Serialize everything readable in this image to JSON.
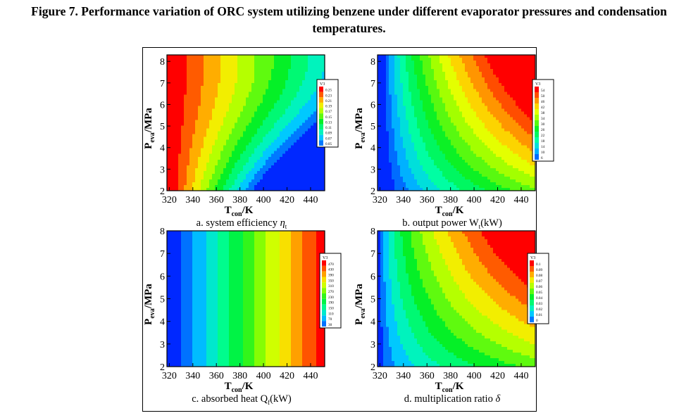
{
  "figure": {
    "title_line1": "Figure 7. Performance variation of  ORC system utilizing benzene under different evaporator pressures and condensation",
    "title_line2": "temperatures."
  },
  "chart_data": [
    {
      "type": "heatmap",
      "panel_id": "a",
      "caption": "a. system efficiency",
      "caption_symbol": "η",
      "caption_subscript": "t",
      "xlabel": "T",
      "xlabel_sub": "con",
      "xlabel_unit": "/K",
      "ylabel": "P",
      "ylabel_sub": "eva",
      "ylabel_unit": "/MPa",
      "xticks": [
        320,
        340,
        360,
        380,
        400,
        420,
        440
      ],
      "yticks": [
        2,
        3,
        4,
        5,
        6,
        7,
        8
      ],
      "xlim": [
        318,
        452
      ],
      "ylim": [
        2,
        8.3
      ],
      "legend_title": "V3",
      "legend_position": "right",
      "legend_levels": [
        "0.05",
        "0.07",
        "0.09",
        "0.11",
        "0.13",
        "0.15",
        "0.17",
        "0.19",
        "0.21",
        "0.23",
        "0.25"
      ],
      "value_range": [
        0.05,
        0.27
      ],
      "field": {
        "kind": "efficiency",
        "coefficients": [
          0.27,
          0.00125,
          0.0018
        ]
      }
    },
    {
      "type": "heatmap",
      "panel_id": "b",
      "caption": "b. output power W",
      "caption_subscript": "t",
      "caption_unit": "(kW)",
      "xlabel": "T",
      "xlabel_sub": "con",
      "xlabel_unit": "/K",
      "ylabel": "P",
      "ylabel_sub": "eva",
      "ylabel_unit": "/MPa",
      "xticks": [
        320,
        340,
        360,
        380,
        400,
        420,
        440
      ],
      "yticks": [
        2,
        3,
        4,
        5,
        6,
        7,
        8
      ],
      "xlim": [
        318,
        452
      ],
      "ylim": [
        2,
        8.3
      ],
      "legend_title": "V3",
      "legend_position": "right",
      "legend_levels": [
        "6",
        "10",
        "14",
        "18",
        "22",
        "26",
        "30",
        "34",
        "38",
        "42",
        "46",
        "50",
        "54"
      ],
      "value_range": [
        6,
        56
      ],
      "field": {
        "kind": "power",
        "max": 56,
        "x_range": 110,
        "y_range": 5.4
      }
    },
    {
      "type": "heatmap",
      "panel_id": "c",
      "caption": "c. absorbed heat Q",
      "caption_subscript": "f",
      "caption_unit": "(kW)",
      "xlabel": "T",
      "xlabel_sub": "con",
      "xlabel_unit": "/K",
      "ylabel": "P",
      "ylabel_sub": "eva",
      "ylabel_unit": "/MPa",
      "xticks": [
        320,
        340,
        360,
        380,
        400,
        420,
        440
      ],
      "yticks": [
        2,
        3,
        4,
        5,
        6,
        7,
        8
      ],
      "xlim": [
        318,
        452
      ],
      "ylim": [
        2,
        8
      ],
      "legend_title": "V3",
      "legend_position": "right",
      "legend_levels": [
        "30",
        "70",
        "110",
        "150",
        "190",
        "230",
        "270",
        "310",
        "350",
        "390",
        "430",
        "470"
      ],
      "value_range": [
        30,
        480
      ],
      "field": {
        "kind": "heat",
        "per_kelvin": 3.35
      }
    },
    {
      "type": "heatmap",
      "panel_id": "d",
      "caption": "d. multiplication ratio",
      "caption_symbol": "δ",
      "xlabel": "T",
      "xlabel_sub": "con",
      "xlabel_unit": "/K",
      "ylabel": "P",
      "ylabel_sub": "eva",
      "ylabel_unit": "/MPa",
      "xticks": [
        320,
        340,
        360,
        380,
        400,
        420,
        440
      ],
      "yticks": [
        2,
        3,
        4,
        5,
        6,
        7,
        8
      ],
      "xlim": [
        318,
        452
      ],
      "ylim": [
        2,
        8
      ],
      "legend_title": "V3",
      "legend_position": "right",
      "legend_levels": [
        "0",
        "0.01",
        "0.02",
        "0.03",
        "0.04",
        "0.05",
        "0.06",
        "0.07",
        "0.08",
        "0.09",
        "0.1"
      ],
      "value_range": [
        0,
        0.11
      ],
      "field": {
        "kind": "ratio",
        "max": 0.11,
        "x_range": 110,
        "y_range": 5.4
      }
    }
  ]
}
